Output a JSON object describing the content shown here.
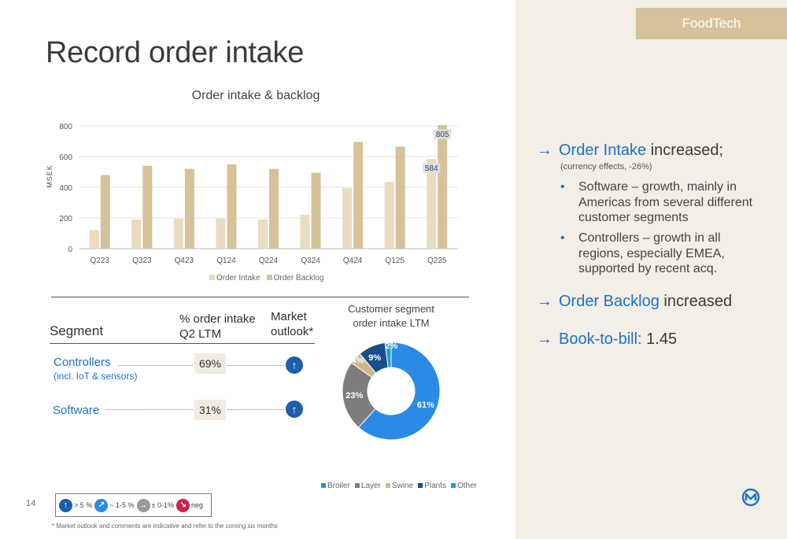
{
  "brand": "FoodTech",
  "title": "Record order intake",
  "page_number": "14",
  "chart_data": [
    {
      "type": "bar",
      "title": "Order intake & backlog",
      "ylabel": "MSEK",
      "ylim": [
        0,
        800
      ],
      "yticks": [
        0,
        200,
        400,
        600,
        800
      ],
      "categories": [
        "Q223",
        "Q323",
        "Q423",
        "Q124",
        "Q224",
        "Q324",
        "Q424",
        "Q125",
        "Q225"
      ],
      "series": [
        {
          "name": "Order Intake",
          "color": "#e9dcc0",
          "values": [
            120,
            190,
            195,
            195,
            190,
            220,
            395,
            435,
            584
          ]
        },
        {
          "name": "Order Backlog",
          "color": "#d6c299",
          "values": [
            480,
            540,
            520,
            550,
            520,
            495,
            695,
            665,
            805
          ]
        }
      ],
      "data_labels": [
        {
          "series": "Order Intake",
          "category": "Q225",
          "text": "584"
        },
        {
          "series": "Order Backlog",
          "category": "Q225",
          "text": "805"
        }
      ],
      "legend": "bottom"
    },
    {
      "type": "pie",
      "title": "Customer segment order intake LTM",
      "donut": true,
      "slices": [
        {
          "name": "Broiler",
          "value": 61,
          "label": "61%",
          "color": "#2a8ae6"
        },
        {
          "name": "Layer",
          "value": 23,
          "label": "23%",
          "color": "#7d7d7d"
        },
        {
          "name": "Swine",
          "value": 4,
          "label": "4%",
          "color": "#cdb88c"
        },
        {
          "name": "Plants",
          "value": 9,
          "label": "9%",
          "color": "#174f8c"
        },
        {
          "name": "Other",
          "value": 2,
          "label": "2%",
          "color": "#1fa0c8"
        }
      ],
      "legend": "bottom"
    }
  ],
  "segments_table": {
    "header_segment": "Segment",
    "header_pct_line1": "% order intake",
    "header_pct_line2": "Q2 LTM",
    "header_outlook_line1": "Market",
    "header_outlook_line2": "outlook*",
    "rows": [
      {
        "name": "Controllers",
        "sub": "(incl. IoT & sensors)",
        "pct": "69%",
        "outlook": "↑"
      },
      {
        "name": "Software",
        "sub": "",
        "pct": "31%",
        "outlook": "↑"
      }
    ]
  },
  "outlook_key": [
    {
      "symbol": "↑",
      "text": "> 5 %",
      "color": "#1d5eaa"
    },
    {
      "symbol": "↗",
      "text": "~ 1-5 %",
      "color": "#2a8ae6"
    },
    {
      "symbol": "→",
      "text": "± 0-1%",
      "color": "#9a9a9a"
    },
    {
      "symbol": "↘",
      "text": "neg",
      "color": "#c8204f"
    }
  ],
  "footnote": "* Market outlook and comments are indicative and refer to the coming six months",
  "highlights": {
    "arrow": "→",
    "h1_highlight": "Order Intake",
    "h1_rest": " increased;",
    "h1_note": "(currency effects, -26%)",
    "bullets": [
      "Software – growth, mainly in Americas from several different customer segments",
      "Controllers – growth in all regions, especially EMEA, supported by recent acq."
    ],
    "bullet_dot": "•",
    "h2_highlight": "Order Backlog",
    "h2_rest": " increased",
    "h3_highlight": "Book-to-bill:",
    "h3_rest": " 1.45"
  }
}
